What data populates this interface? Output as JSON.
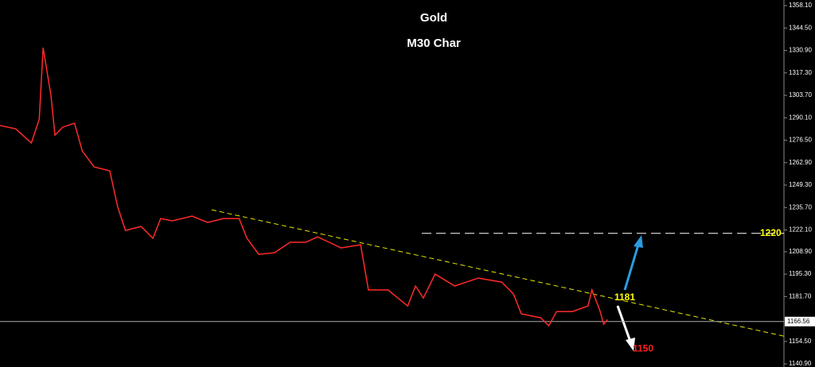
{
  "chart_data": {
    "type": "line",
    "title": "Gold",
    "subtitle": "M30 Char",
    "series": [
      {
        "color": "#ff2a2a",
        "x": [
          0,
          4,
          8,
          10,
          11,
          12,
          13,
          14,
          16,
          19,
          21,
          24,
          28,
          30,
          32,
          36,
          39,
          41,
          44,
          49,
          53,
          57,
          61,
          63,
          66,
          70,
          74,
          78,
          81,
          84,
          87,
          92,
          94,
          99,
          104,
          106,
          108,
          111,
          116,
          122,
          128,
          131,
          133,
          138,
          140,
          142,
          146,
          150,
          151,
          153,
          154,
          155
        ],
        "values": [
          1285.4,
          1283.4,
          1274.8,
          1289.2,
          1332.6,
          1318.1,
          1303.7,
          1279.6,
          1284.4,
          1286.8,
          1269.9,
          1260.3,
          1257.9,
          1236.2,
          1221.8,
          1224.2,
          1217.0,
          1229.0,
          1227.6,
          1230.5,
          1226.6,
          1229.0,
          1229.0,
          1217.0,
          1207.3,
          1208.3,
          1214.6,
          1214.6,
          1217.9,
          1214.6,
          1211.2,
          1213.1,
          1185.7,
          1185.7,
          1176.0,
          1188.1,
          1180.8,
          1195.3,
          1188.1,
          1192.9,
          1190.5,
          1183.2,
          1171.2,
          1168.8,
          1164.0,
          1172.6,
          1172.6,
          1176.0,
          1185.7,
          1173.6,
          1164.9,
          1167.8
        ]
      }
    ],
    "trendline": {
      "color": "#e6e600",
      "x": [
        54,
        200
      ],
      "values": [
        1234.3,
        1157.7
      ]
    },
    "annotations": [
      {
        "value": 1220,
        "color": "#ffff00"
      },
      {
        "value": 1181,
        "color": "#ffff00"
      },
      {
        "value": 1150,
        "color": "#ff2020"
      }
    ],
    "current_price": 1166.56,
    "xlim": [
      0,
      200
    ],
    "ylim": [
      1139,
      1361.5
    ],
    "yticks": [
      {
        "value": 1358.1,
        "label": "1358.10"
      },
      {
        "value": 1344.5,
        "label": "1344.50"
      },
      {
        "value": 1330.9,
        "label": "1330.90"
      },
      {
        "value": 1317.3,
        "label": "1317.30"
      },
      {
        "value": 1303.7,
        "label": "1303.70"
      },
      {
        "value": 1290.1,
        "label": "1290.10"
      },
      {
        "value": 1276.5,
        "label": "1276.50"
      },
      {
        "value": 1262.9,
        "label": "1262.90"
      },
      {
        "value": 1249.3,
        "label": "1249.30"
      },
      {
        "value": 1235.7,
        "label": "1235.70"
      },
      {
        "value": 1222.1,
        "label": "1222.10"
      },
      {
        "value": 1208.9,
        "label": "1208.90"
      },
      {
        "value": 1195.3,
        "label": "1195.30"
      },
      {
        "value": 1181.7,
        "label": "1181.70"
      },
      {
        "value": 1154.5,
        "label": "1154.50"
      },
      {
        "value": 1140.9,
        "label": "1140.90"
      }
    ]
  }
}
